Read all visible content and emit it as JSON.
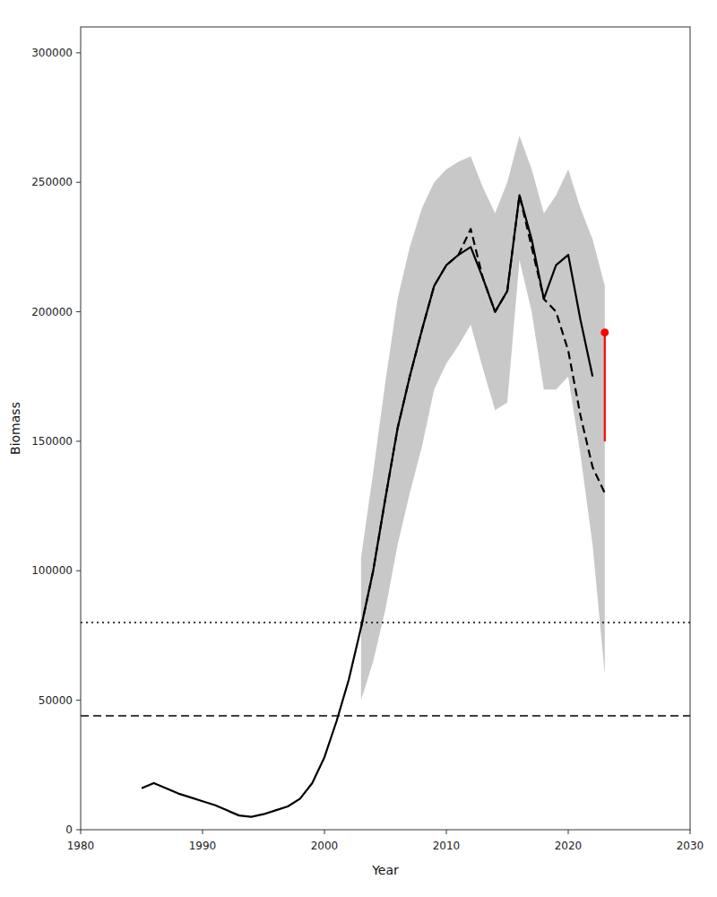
{
  "chart_data": {
    "type": "line",
    "xlabel": "Year",
    "ylabel": "Biomass",
    "xlim": [
      1980,
      2030
    ],
    "ylim": [
      0,
      310000
    ],
    "xticks": [
      1980,
      1990,
      2000,
      2010,
      2020,
      2030
    ],
    "yticks": [
      0,
      50000,
      100000,
      150000,
      200000,
      250000,
      300000
    ],
    "grid": false,
    "series": [
      {
        "type": "area",
        "color": "#c8c8c8",
        "x": [
          2003,
          2004,
          2005,
          2006,
          2007,
          2008,
          2009,
          2010,
          2011,
          2012,
          2013,
          2014,
          2015,
          2016,
          2017,
          2018,
          2019,
          2020,
          2021,
          2022,
          2023
        ],
        "lower": [
          50000,
          65000,
          85000,
          110000,
          130000,
          148000,
          170000,
          180000,
          187000,
          195000,
          178000,
          162000,
          165000,
          220000,
          200000,
          170000,
          170000,
          175000,
          145000,
          110000,
          60000
        ],
        "upper": [
          105000,
          138000,
          173000,
          205000,
          225000,
          240000,
          250000,
          255000,
          258000,
          260000,
          248000,
          238000,
          250000,
          268000,
          255000,
          238000,
          245000,
          255000,
          240000,
          228000,
          210000
        ]
      },
      {
        "type": "hline",
        "color": "#000000",
        "line_style": "dotted",
        "values": [
          80000
        ]
      },
      {
        "type": "hline",
        "color": "#000000",
        "line_style": "dashed",
        "values": [
          44000
        ]
      },
      {
        "type": "line",
        "color": "#000000",
        "line_style": "solid",
        "x": [
          1985,
          1986,
          1987,
          1988,
          1989,
          1990,
          1991,
          1992,
          1993,
          1994,
          1995,
          1996,
          1997,
          1998,
          1999,
          2000,
          2001,
          2002,
          2003,
          2004,
          2005,
          2006,
          2007,
          2008,
          2009,
          2010,
          2011,
          2012,
          2013,
          2014,
          2015,
          2016,
          2017,
          2018,
          2019,
          2020,
          2021,
          2022
        ],
        "values": [
          16000,
          18000,
          16000,
          14000,
          12500,
          11000,
          9500,
          7500,
          5500,
          5000,
          6000,
          7500,
          9000,
          12000,
          18000,
          28000,
          42000,
          58000,
          78000,
          100000,
          128000,
          155000,
          175000,
          193000,
          210000,
          218000,
          222000,
          225000,
          213000,
          200000,
          208000,
          245000,
          228000,
          205000,
          218000,
          222000,
          197000,
          175000
        ]
      },
      {
        "type": "line",
        "color": "#000000",
        "line_style": "dashed",
        "x": [
          2003,
          2004,
          2005,
          2006,
          2007,
          2008,
          2009,
          2010,
          2011,
          2012,
          2013,
          2014,
          2015,
          2016,
          2017,
          2018,
          2019,
          2020,
          2021,
          2022,
          2023
        ],
        "values": [
          78000,
          100000,
          128000,
          155000,
          175000,
          193000,
          210000,
          218000,
          222000,
          232000,
          213000,
          200000,
          208000,
          245000,
          225000,
          205000,
          200000,
          185000,
          160000,
          140000,
          130000
        ]
      },
      {
        "type": "line",
        "color": "#ff0000",
        "line_style": "solid",
        "x": [
          2023,
          2023
        ],
        "values": [
          150000,
          192000
        ]
      },
      {
        "type": "scatter",
        "color": "#ff0000",
        "marker": "circle",
        "x": [
          2023
        ],
        "values": [
          192000
        ]
      }
    ]
  }
}
